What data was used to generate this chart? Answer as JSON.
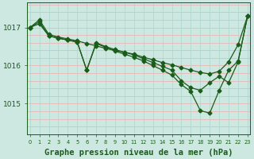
{
  "background_color": "#cce8e0",
  "plot_bg_color": "#cce8e0",
  "line_color": "#1a5c1a",
  "grid_color_h": "#f5aaaa",
  "grid_color_v": "#aad4cc",
  "title": "Graphe pression niveau de la mer (hPa)",
  "title_fontsize": 7.5,
  "yticks": [
    1015,
    1016,
    1017
  ],
  "ylim": [
    1014.2,
    1017.65
  ],
  "xlim": [
    -0.3,
    23.3
  ],
  "series1_x": [
    0,
    1,
    2,
    3,
    4,
    5,
    6,
    7,
    8,
    9,
    10,
    11,
    12,
    13,
    14,
    15,
    16,
    17,
    18,
    19,
    20,
    21,
    22,
    23
  ],
  "series1_y": [
    1017.0,
    1017.2,
    1016.82,
    1016.75,
    1016.7,
    1016.65,
    1016.58,
    1016.52,
    1016.45,
    1016.4,
    1016.35,
    1016.3,
    1016.22,
    1016.15,
    1016.08,
    1016.02,
    1015.95,
    1015.88,
    1015.82,
    1015.78,
    1015.85,
    1016.1,
    1016.55,
    1017.3
  ],
  "series2_x": [
    0,
    1,
    2,
    3,
    4,
    5,
    6,
    7,
    8,
    9,
    10,
    11,
    12,
    13,
    14,
    15,
    16,
    17,
    18,
    19,
    20,
    21,
    22,
    23
  ],
  "series2_y": [
    1017.0,
    1017.15,
    1016.78,
    1016.72,
    1016.67,
    1016.62,
    1015.88,
    1016.6,
    1016.5,
    1016.42,
    1016.35,
    1016.28,
    1016.18,
    1016.08,
    1015.98,
    1015.88,
    1015.6,
    1015.42,
    1015.35,
    1015.55,
    1015.72,
    1015.55,
    1016.1,
    1017.3
  ],
  "series3_x": [
    0,
    1,
    2,
    3,
    4,
    5,
    6,
    7,
    8,
    9,
    10,
    11,
    12,
    13,
    14,
    15,
    16,
    17,
    18,
    19,
    20,
    21,
    22,
    23
  ],
  "series3_y": [
    1017.0,
    1017.1,
    1016.78,
    1016.72,
    1016.67,
    1016.62,
    1015.88,
    1016.58,
    1016.48,
    1016.38,
    1016.3,
    1016.22,
    1016.12,
    1016.0,
    1015.88,
    1015.75,
    1015.5,
    1015.32,
    1014.82,
    1014.75,
    1015.35,
    1015.88,
    1016.12,
    1017.3
  ]
}
